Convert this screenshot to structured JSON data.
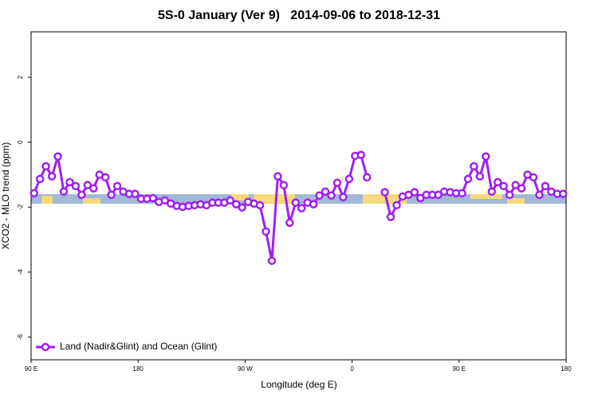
{
  "chart_data": {
    "type": "line",
    "title": "5S-0 January (Ver 9)   2014-09-06 to 2018-12-31",
    "x_label": "Longitude (deg E)",
    "y_label": "XCO2 - MLO trend (ppm)",
    "xlim": [
      90,
      540
    ],
    "xticks": [
      {
        "value": 90,
        "label": "90 E"
      },
      180,
      {
        "value": 270,
        "label": "90 W"
      },
      {
        "value": 360,
        "label": "0"
      },
      {
        "value": 450,
        "label": "90 E"
      },
      {
        "value": 540,
        "label": "180"
      }
    ],
    "ylim": [
      -6.7,
      3.4
    ],
    "yticks": [
      -6,
      -4,
      -2,
      0,
      2
    ],
    "legend": "bottomleft",
    "x": [
      92.5,
      97.5,
      102.5,
      107.5,
      112.5,
      117.5,
      122.5,
      127.5,
      132.5,
      137.5,
      142.5,
      147.5,
      152.5,
      157.5,
      162.5,
      167.5,
      172.5,
      177.5,
      182.5,
      187.5,
      192.5,
      197.5,
      202.5,
      207.5,
      212.5,
      217.5,
      222.5,
      227.5,
      232.5,
      237.5,
      242.5,
      247.5,
      252.5,
      257.5,
      262.5,
      267.5,
      272.5,
      277.5,
      282.5,
      287.5,
      292.5,
      297.5,
      302.5,
      307.5,
      312.5,
      317.5,
      322.5,
      327.5,
      332.5,
      337.5,
      342.5,
      347.5,
      352.5,
      357.5,
      362.5,
      367.5,
      372.5,
      377.5,
      382.5,
      387.5,
      392.5,
      397.5,
      402.5,
      407.5,
      412.5,
      417.5,
      422.5,
      427.5,
      432.5,
      437.5,
      442.5,
      447.5,
      452.5,
      457.5,
      462.5,
      467.5,
      472.5,
      477.5,
      482.5,
      487.5,
      492.5,
      497.5,
      502.5,
      507.5,
      512.5,
      517.5,
      522.5,
      527.5,
      532.5,
      537.5
    ],
    "series": [
      {
        "name": "Land (Nadir&Glint) and Ocean (Glint)",
        "color": "#a020f0",
        "values": [
          -1.57,
          -1.13,
          -0.74,
          -1.05,
          -0.44,
          -1.52,
          -1.23,
          -1.35,
          -1.62,
          -1.32,
          -1.42,
          -1.0,
          -1.08,
          -1.62,
          -1.35,
          -1.52,
          -1.59,
          -1.59,
          -1.74,
          -1.74,
          -1.72,
          -1.84,
          -1.79,
          -1.89,
          -1.96,
          -1.99,
          -1.96,
          -1.94,
          -1.91,
          -1.94,
          -1.86,
          -1.86,
          -1.86,
          -1.79,
          -1.91,
          -2.01,
          -1.84,
          -1.89,
          -1.94,
          -2.75,
          -3.65,
          -1.05,
          -1.32,
          -2.48,
          -1.86,
          -2.03,
          -1.86,
          -1.91,
          -1.64,
          -1.52,
          -1.64,
          -1.25,
          -1.69,
          -1.13,
          -0.42,
          -0.39,
          -1.08,
          null,
          null,
          -1.54,
          -2.3,
          -1.94,
          -1.67,
          -1.62,
          -1.54,
          -1.72,
          -1.62,
          -1.62,
          -1.62,
          -1.52,
          -1.54,
          -1.57,
          -1.57,
          -1.13,
          -0.74,
          -1.05,
          -0.44,
          -1.52,
          -1.23,
          -1.35,
          -1.62,
          -1.32,
          -1.42,
          -1.0,
          -1.08,
          -1.62,
          -1.35,
          -1.52,
          -1.59,
          -1.59
        ]
      }
    ]
  }
}
